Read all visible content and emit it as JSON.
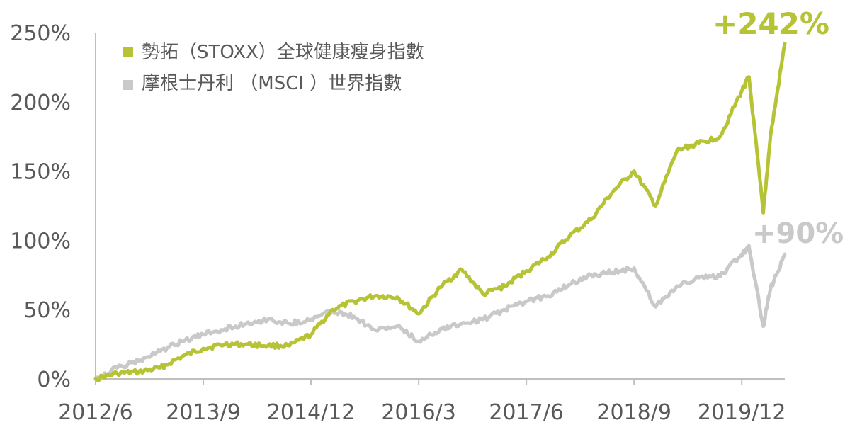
{
  "chart_data": {
    "type": "line",
    "title": "",
    "xlabel": "",
    "ylabel": "",
    "ylim": [
      0,
      250
    ],
    "y_unit": "%",
    "grid": false,
    "legend_position": "top-left",
    "y_ticks": [
      "0%",
      "50%",
      "100%",
      "150%",
      "200%",
      "250%"
    ],
    "y_tick_values": [
      0,
      50,
      100,
      150,
      200,
      250
    ],
    "x_ticks": [
      "2012/6",
      "2013/9",
      "2014/12",
      "2016/3",
      "2017/6",
      "2018/9",
      "2019/12"
    ],
    "x_range": [
      "2012/6",
      "2020/6"
    ],
    "series": [
      {
        "name": "勢拓（STOXX）全球健康瘦身指數",
        "color": "#b5c334",
        "x": [
          "2012/6",
          "2012/9",
          "2012/12",
          "2013/3",
          "2013/6",
          "2013/9",
          "2013/12",
          "2014/3",
          "2014/6",
          "2014/9",
          "2014/12",
          "2015/3",
          "2015/6",
          "2015/9",
          "2015/12",
          "2016/3",
          "2016/6",
          "2016/9",
          "2016/12",
          "2017/3",
          "2017/6",
          "2017/9",
          "2017/12",
          "2018/3",
          "2018/6",
          "2018/9",
          "2018/12",
          "2019/3",
          "2019/6",
          "2019/9",
          "2019/12",
          "2020/1",
          "2020/3",
          "2020/4",
          "2020/6"
        ],
        "values": [
          0,
          4,
          5,
          8,
          16,
          22,
          25,
          25,
          24,
          24,
          32,
          50,
          56,
          60,
          59,
          47,
          66,
          79,
          61,
          67,
          78,
          88,
          103,
          115,
          135,
          150,
          125,
          165,
          170,
          175,
          208,
          218,
          120,
          175,
          242
        ]
      },
      {
        "name": "摩根士丹利 （MSCI ）世界指數",
        "color": "#c9c9c9",
        "x": [
          "2012/6",
          "2012/9",
          "2012/12",
          "2013/3",
          "2013/6",
          "2013/9",
          "2013/12",
          "2014/3",
          "2014/6",
          "2014/9",
          "2014/12",
          "2015/3",
          "2015/6",
          "2015/9",
          "2015/12",
          "2016/3",
          "2016/6",
          "2016/9",
          "2016/12",
          "2017/3",
          "2017/6",
          "2017/9",
          "2017/12",
          "2018/3",
          "2018/6",
          "2018/9",
          "2018/12",
          "2019/3",
          "2019/6",
          "2019/9",
          "2019/12",
          "2020/1",
          "2020/3",
          "2020/4",
          "2020/6"
        ],
        "values": [
          0,
          8,
          13,
          20,
          27,
          32,
          36,
          40,
          43,
          40,
          43,
          49,
          45,
          35,
          38,
          27,
          36,
          40,
          43,
          50,
          56,
          60,
          68,
          75,
          77,
          80,
          52,
          67,
          73,
          74,
          90,
          96,
          38,
          65,
          90
        ]
      }
    ],
    "annotations": [
      {
        "text": "+242%",
        "series": 0
      },
      {
        "text": "+90%",
        "series": 1
      }
    ]
  }
}
